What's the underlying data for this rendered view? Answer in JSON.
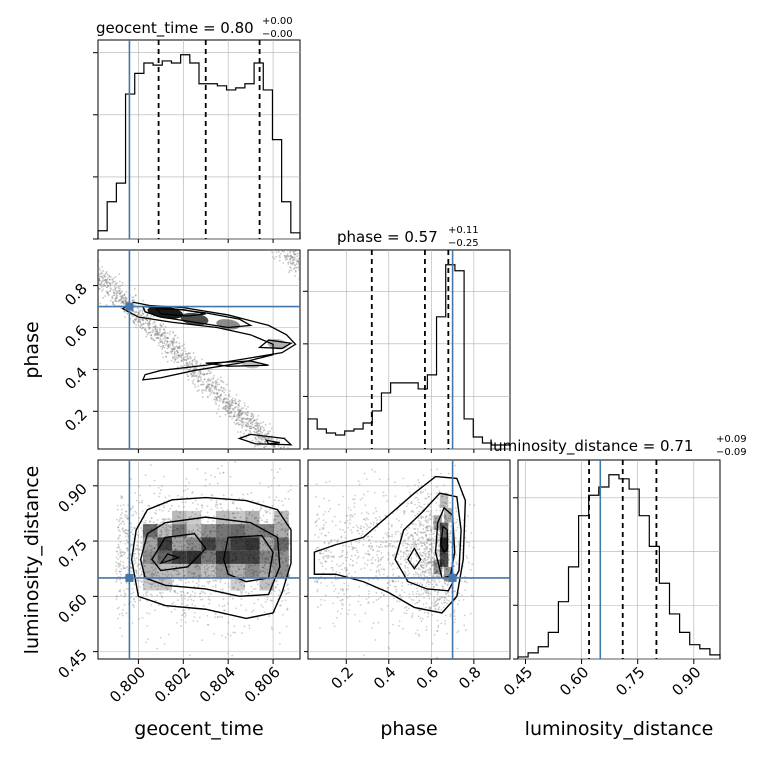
{
  "chart_data": {
    "type": "corner",
    "parameters": [
      "geocent_time",
      "phase",
      "luminosity_distance"
    ],
    "truths": {
      "geocent_time": 0.7996,
      "phase": 0.7,
      "luminosity_distance": 0.65
    },
    "colors": {
      "truth": "#4477aa",
      "hist": "#000000",
      "grid": "#b0b0b0",
      "scatter": "#888888"
    },
    "titles": [
      {
        "base": "geocent_time = 0.80",
        "sup": "+0.00",
        "sub": "−0.00"
      },
      {
        "base": "phase = 0.57",
        "sup": "+0.11",
        "sub": "−0.25"
      },
      {
        "base": "luminosity_distance = 0.71",
        "sup": "+0.09",
        "sub": "−0.09"
      }
    ],
    "axis_labels": {
      "geocent_time": "geocent_time",
      "phase": "phase",
      "luminosity_distance": "luminosity_distance"
    },
    "ticks": {
      "geocent_time": {
        "values": [
          0.8,
          0.802,
          0.804,
          0.806
        ],
        "labels": [
          "0.800",
          "0.802",
          "0.804",
          "0.806"
        ]
      },
      "phase": {
        "values": [
          0.2,
          0.4,
          0.6,
          0.8
        ],
        "labels": [
          "0.2",
          "0.4",
          "0.6",
          "0.8"
        ]
      },
      "luminosity_distance": {
        "values": [
          0.45,
          0.6,
          0.75,
          0.9
        ],
        "labels": [
          "0.45",
          "0.60",
          "0.75",
          "0.90"
        ]
      }
    },
    "ranges": {
      "geocent_time": [
        0.7982,
        0.8072
      ],
      "phase": [
        0.02,
        0.97
      ],
      "luminosity_distance": [
        0.43,
        0.97
      ]
    },
    "quantiles": {
      "geocent_time": [
        0.8009,
        0.803,
        0.8054
      ],
      "phase": [
        0.32,
        0.57,
        0.68
      ],
      "luminosity_distance": [
        0.62,
        0.71,
        0.8
      ]
    },
    "histograms": {
      "geocent_time": {
        "edges_from": 0.7982,
        "edges_to": 0.8072,
        "counts": [
          4,
          18,
          27,
          70,
          80,
          85,
          84,
          86,
          85,
          89,
          85,
          75,
          75,
          74,
          72,
          73,
          75,
          85,
          72,
          48,
          18,
          3
        ]
      },
      "phase": {
        "edges_from": 0.02,
        "edges_to": 0.97,
        "counts": [
          15,
          10,
          8,
          7,
          9,
          10,
          13,
          19,
          28,
          33,
          33,
          33,
          30,
          37,
          66,
          92,
          89,
          15,
          6,
          3,
          2,
          2
        ]
      },
      "luminosity_distance": {
        "edges_from": 0.43,
        "edges_to": 0.97,
        "counts": [
          1,
          3,
          6,
          13,
          28,
          45,
          70,
          80,
          84,
          90,
          88,
          83,
          70,
          55,
          37,
          22,
          13,
          7,
          5,
          2
        ]
      }
    }
  }
}
